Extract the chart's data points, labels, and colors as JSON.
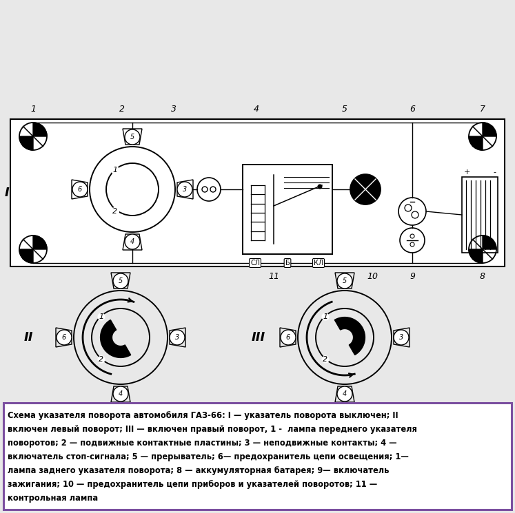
{
  "bg_color": "#e8e8e8",
  "line_color": "#000000",
  "border_color": "#7b4fa0",
  "caption_bg": "#ffffff",
  "caption_lines": [
    "Схема указателя поворота автомобиля ГАЗ-66: I — указатель поворота выключен; II",
    "включен левый поворот; III — включен правый поворот, 1 -  лампа переднего указателя",
    "поворотов; 2 — подвижные контактные пластины; 3 — неподвижные контакты; 4 —",
    "включатель стоп-сигнала; 5 — прерыватель; 6— предохранитель цепи освещения; 1—",
    "лампа заднего указателя поворота; 8 — аккумуляторная батарея; 9— включатель",
    "зажигания; 10 — предохранитель цепи приборов и указателей поворотов; 11 —",
    "контрольная лампа"
  ],
  "top_labels": [
    [
      "1",
      55,
      12
    ],
    [
      "2",
      175,
      12
    ],
    [
      "3",
      255,
      12
    ],
    [
      "4",
      360,
      12
    ],
    [
      "5",
      490,
      12
    ],
    [
      "6",
      590,
      12
    ],
    [
      "7",
      700,
      12
    ]
  ],
  "bot_labels": [
    [
      "8",
      700,
      348
    ],
    [
      "9",
      608,
      348
    ],
    [
      "10",
      530,
      348
    ],
    [
      "11",
      415,
      348
    ]
  ]
}
